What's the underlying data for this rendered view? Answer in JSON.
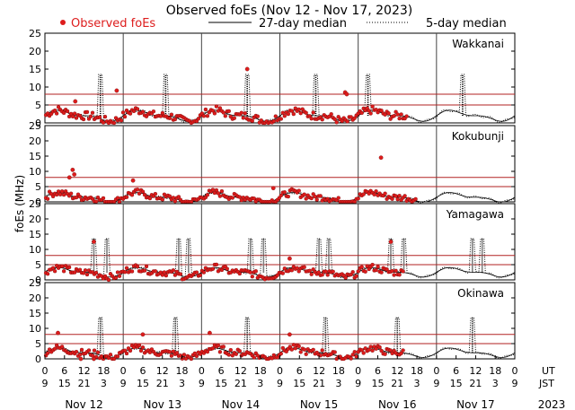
{
  "chart_data": {
    "type": "scatter",
    "title": "Observed foEs (Nov 12 - Nov 17, 2023)",
    "ylabel": "foEs (MHz)",
    "ylim": [
      0,
      25
    ],
    "yticks": [
      0,
      5,
      10,
      15,
      20,
      25
    ],
    "legend": {
      "placement": "top",
      "entries": [
        {
          "label": "Observed foEs",
          "color": "#dd1c1c",
          "style": "marker"
        },
        {
          "label": "27-day median",
          "color": "#000000",
          "style": "solid-line"
        },
        {
          "label": "5-day median",
          "color": "#000000",
          "style": "dotted-line"
        }
      ]
    },
    "threshold_levels_mhz": [
      5,
      8
    ],
    "threshold_color": "#b22222",
    "utc_offset_hours_jst": 9,
    "x_axis": {
      "ut_ticks": [
        "0",
        "6",
        "12",
        "18",
        "0",
        "6",
        "12",
        "18",
        "0",
        "6",
        "12",
        "18",
        "0",
        "6",
        "12",
        "18",
        "0",
        "6",
        "12",
        "18",
        "0",
        "6",
        "12",
        "18",
        "0"
      ],
      "jst_ticks": [
        "9",
        "15",
        "21",
        "3",
        "9",
        "15",
        "21",
        "3",
        "9",
        "15",
        "21",
        "3",
        "9",
        "15",
        "21",
        "3",
        "9",
        "15",
        "21",
        "3",
        "9",
        "15",
        "21",
        "3",
        "9"
      ],
      "ut_label": "UT",
      "jst_label": "JST",
      "dates": [
        "Nov 12",
        "Nov 13",
        "Nov 14",
        "Nov 15",
        "Nov 16",
        "Nov 17"
      ],
      "year": "2023"
    },
    "panels": [
      {
        "station": "Wakkanai",
        "observed_until_hour": 111,
        "base_level": 2,
        "spike_hours": [
          17,
          37,
          62,
          83,
          99,
          128
        ],
        "highlights": [
          {
            "hour": 9.3,
            "value": 6
          },
          {
            "hour": 22,
            "value": 9
          },
          {
            "hour": 62,
            "value": 15
          },
          {
            "hour": 92,
            "value": 8.5
          },
          {
            "hour": 92.5,
            "value": 8
          }
        ]
      },
      {
        "station": "Kokubunji",
        "observed_until_hour": 114,
        "base_level": 1.5,
        "spike_hours": [],
        "highlights": [
          {
            "hour": 8.5,
            "value": 10.5
          },
          {
            "hour": 9,
            "value": 9
          },
          {
            "hour": 7.5,
            "value": 8
          },
          {
            "hour": 27,
            "value": 7
          },
          {
            "hour": 103,
            "value": 14.5
          },
          {
            "hour": 70,
            "value": 4.5
          }
        ]
      },
      {
        "station": "Yamagawa",
        "observed_until_hour": 110,
        "base_level": 2.5,
        "spike_hours": [
          15,
          19,
          41,
          44,
          63,
          67,
          84,
          87,
          106,
          110,
          131,
          134
        ],
        "highlights": [
          {
            "hour": 15,
            "value": 12.5
          },
          {
            "hour": 106,
            "value": 12.5
          },
          {
            "hour": 75,
            "value": 7
          }
        ]
      },
      {
        "station": "Okinawa",
        "observed_until_hour": 110,
        "base_level": 2,
        "spike_hours": [
          17,
          40,
          62,
          86,
          108,
          131
        ],
        "highlights": [
          {
            "hour": 4,
            "value": 8.5
          },
          {
            "hour": 30,
            "value": 8
          },
          {
            "hour": 50.5,
            "value": 8.5
          },
          {
            "hour": 75,
            "value": 8
          },
          {
            "hour": 11,
            "value": 0
          },
          {
            "hour": 15,
            "value": 0
          }
        ]
      }
    ]
  }
}
